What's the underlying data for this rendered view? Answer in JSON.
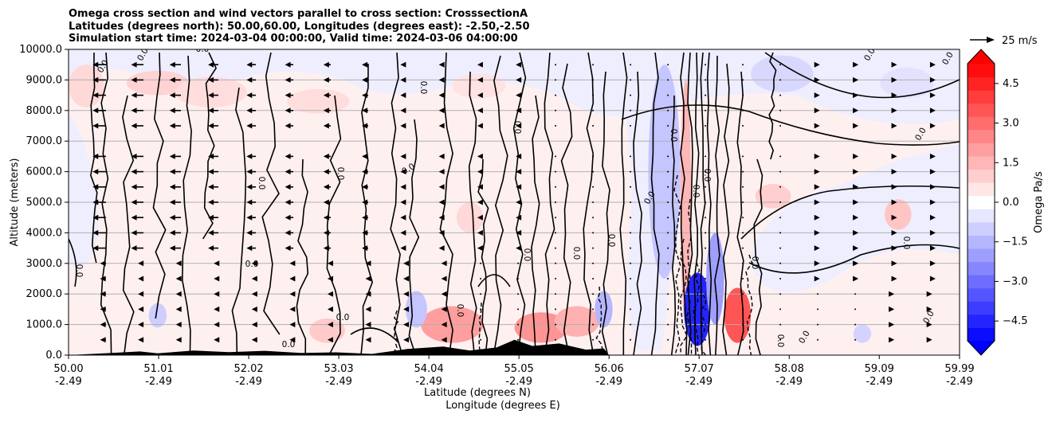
{
  "chart_data": {
    "type": "heatmap",
    "title_lines": [
      "Omega cross section and wind vectors parallel to cross section: CrosssectionA",
      "Latitudes (degrees north): 50.00,60.00, Longitudes (degrees east): -2.50,-2.50",
      "Simulation start time: 2024-03-04 00:00:00, Valid time: 2024-03-06 04:00:00"
    ],
    "xlabel_lat": "Latitude (degrees N)",
    "xlabel_lon": "Longitude (degrees E)",
    "ylabel": "Altitude (meters)",
    "colorbar_label": "Omega Pa/s",
    "quiver_key_label": "25 m/s",
    "xlim": [
      50.0,
      59.99
    ],
    "ylim": [
      0,
      10000
    ],
    "x_ticks": [
      {
        "lat": 50.0,
        "lat_label": "50.00",
        "lon_label": "-2.49"
      },
      {
        "lat": 51.01,
        "lat_label": "51.01",
        "lon_label": "-2.49"
      },
      {
        "lat": 52.02,
        "lat_label": "52.02",
        "lon_label": "-2.49"
      },
      {
        "lat": 53.03,
        "lat_label": "53.03",
        "lon_label": "-2.49"
      },
      {
        "lat": 54.04,
        "lat_label": "54.04",
        "lon_label": "-2.49"
      },
      {
        "lat": 55.05,
        "lat_label": "55.05",
        "lon_label": "-2.49"
      },
      {
        "lat": 56.06,
        "lat_label": "56.06",
        "lon_label": "-2.49"
      },
      {
        "lat": 57.07,
        "lat_label": "57.07",
        "lon_label": "-2.49"
      },
      {
        "lat": 58.08,
        "lat_label": "58.08",
        "lon_label": "-2.49"
      },
      {
        "lat": 59.09,
        "lat_label": "59.09",
        "lon_label": "-2.49"
      },
      {
        "lat": 59.99,
        "lat_label": "59.99",
        "lon_label": "-2.49"
      }
    ],
    "y_ticks": [
      {
        "value": 0,
        "label": "0.0"
      },
      {
        "value": 1000,
        "label": "1000.0"
      },
      {
        "value": 2000,
        "label": "2000.0"
      },
      {
        "value": 3000,
        "label": "3000.0"
      },
      {
        "value": 4000,
        "label": "4000.0"
      },
      {
        "value": 5000,
        "label": "5000.0"
      },
      {
        "value": 6000,
        "label": "6000.0"
      },
      {
        "value": 7000,
        "label": "7000.0"
      },
      {
        "value": 8000,
        "label": "8000.0"
      },
      {
        "value": 9000,
        "label": "9000.0"
      },
      {
        "value": 10000,
        "label": "10000.0"
      }
    ],
    "colorbar_range": [
      -5.25,
      5.25
    ],
    "colorbar_ticks": [
      {
        "value": 4.5,
        "label": "4.5"
      },
      {
        "value": 3.0,
        "label": "3.0"
      },
      {
        "value": 1.5,
        "label": "1.5"
      },
      {
        "value": 0.0,
        "label": "0.0"
      },
      {
        "value": -1.5,
        "label": "−1.5"
      },
      {
        "value": -3.0,
        "label": "−3.0"
      },
      {
        "value": -4.5,
        "label": "−4.5"
      }
    ],
    "colorbar_colors": [
      "#0000ff",
      "#ffffff",
      "#ff0000"
    ],
    "contour_label": "0.0",
    "positive_regions": [
      {
        "lat": 50.2,
        "h": 8800,
        "w": 0.2,
        "dh": 700,
        "level": 0.8
      },
      {
        "lat": 51.0,
        "h": 8900,
        "w": 0.35,
        "dh": 400,
        "level": 0.9
      },
      {
        "lat": 51.6,
        "h": 8600,
        "w": 0.4,
        "dh": 500,
        "level": 0.7
      },
      {
        "lat": 52.8,
        "h": 8300,
        "w": 0.35,
        "dh": 400,
        "level": 0.7
      },
      {
        "lat": 54.6,
        "h": 8800,
        "w": 0.3,
        "dh": 400,
        "level": 0.6
      },
      {
        "lat": 54.5,
        "h": 4500,
        "w": 0.15,
        "dh": 500,
        "level": 0.8
      },
      {
        "lat": 54.3,
        "h": 1000,
        "w": 0.35,
        "dh": 600,
        "level": 2.0
      },
      {
        "lat": 55.3,
        "h": 900,
        "w": 0.3,
        "dh": 500,
        "level": 2.2
      },
      {
        "lat": 55.7,
        "h": 1100,
        "w": 0.25,
        "dh": 500,
        "level": 1.6
      },
      {
        "lat": 56.92,
        "h": 5000,
        "w": 0.06,
        "dh": 4000,
        "level": 1.5
      },
      {
        "lat": 57.5,
        "h": 1300,
        "w": 0.15,
        "dh": 900,
        "level": 3.5
      },
      {
        "lat": 57.9,
        "h": 5200,
        "w": 0.2,
        "dh": 400,
        "level": 1.0
      },
      {
        "lat": 59.3,
        "h": 4600,
        "w": 0.15,
        "dh": 500,
        "level": 1.2
      },
      {
        "lat": 52.9,
        "h": 800,
        "w": 0.2,
        "dh": 400,
        "level": 1.1
      }
    ],
    "negative_regions": [
      {
        "lat": 58.0,
        "h": 9200,
        "w": 0.35,
        "dh": 600,
        "level": -0.8
      },
      {
        "lat": 59.4,
        "h": 8900,
        "w": 0.3,
        "dh": 500,
        "level": -0.6
      },
      {
        "lat": 56.68,
        "h": 6000,
        "w": 0.18,
        "dh": 3500,
        "level": -1.2
      },
      {
        "lat": 57.05,
        "h": 1500,
        "w": 0.15,
        "dh": 1200,
        "level": -4.5
      },
      {
        "lat": 57.25,
        "h": 2500,
        "w": 0.1,
        "dh": 1500,
        "level": -2.0
      },
      {
        "lat": 56.0,
        "h": 1500,
        "w": 0.1,
        "dh": 600,
        "level": -1.5
      },
      {
        "lat": 53.9,
        "h": 1500,
        "w": 0.12,
        "dh": 600,
        "level": -1.2
      },
      {
        "lat": 51.0,
        "h": 1300,
        "w": 0.1,
        "dh": 400,
        "level": -1.0
      },
      {
        "lat": 58.9,
        "h": 700,
        "w": 0.1,
        "dh": 300,
        "level": -0.9
      }
    ],
    "terrain": [
      [
        50.0,
        0
      ],
      [
        50.4,
        60
      ],
      [
        50.8,
        120
      ],
      [
        51.0,
        60
      ],
      [
        51.4,
        150
      ],
      [
        51.8,
        100
      ],
      [
        52.2,
        140
      ],
      [
        52.6,
        70
      ],
      [
        53.0,
        90
      ],
      [
        53.4,
        40
      ],
      [
        53.8,
        200
      ],
      [
        54.2,
        280
      ],
      [
        54.5,
        150
      ],
      [
        54.8,
        250
      ],
      [
        55.0,
        500
      ],
      [
        55.2,
        300
      ],
      [
        55.5,
        380
      ],
      [
        55.8,
        180
      ],
      [
        56.0,
        220
      ],
      [
        56.06,
        0
      ]
    ]
  }
}
